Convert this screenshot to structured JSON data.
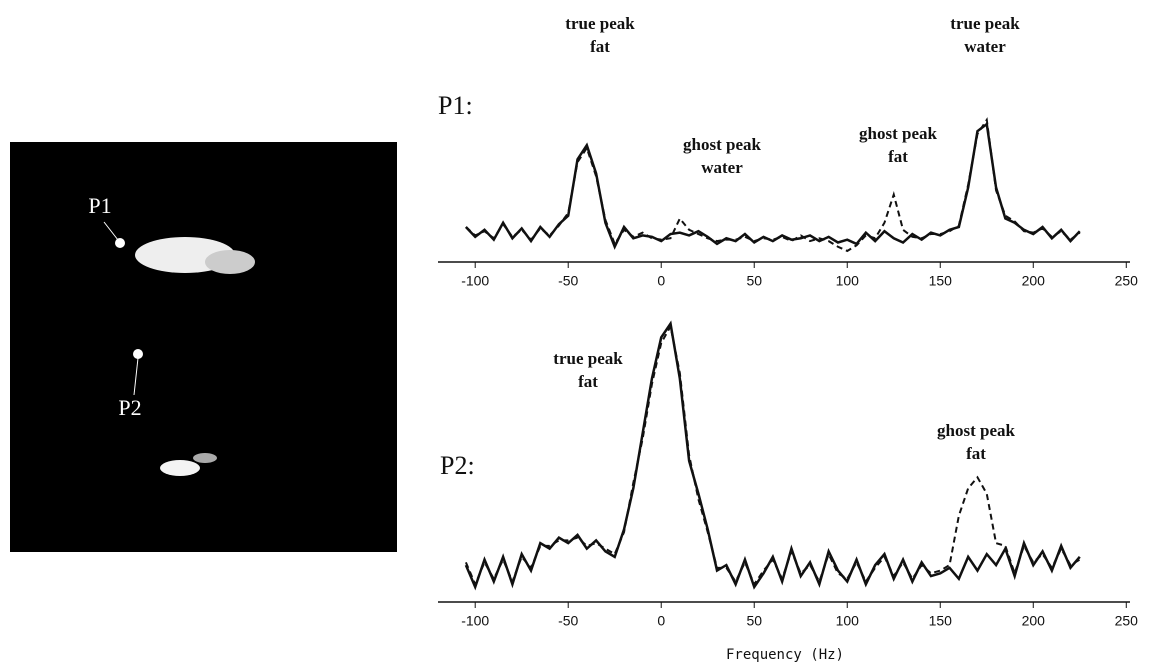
{
  "image": {
    "labels": [
      "P1",
      "P2"
    ]
  },
  "chart_data": [
    {
      "type": "line",
      "title": "P1:",
      "annotations": [
        [
          "true peak",
          "fat"
        ],
        [
          "ghost peak",
          "water"
        ],
        [
          "ghost peak",
          "fat"
        ],
        [
          "true peak",
          "water"
        ]
      ],
      "x": [
        -105,
        -100,
        -95,
        -90,
        -85,
        -80,
        -75,
        -70,
        -65,
        -60,
        -55,
        -50,
        -45,
        -40,
        -35,
        -30,
        -25,
        -20,
        -15,
        -10,
        -5,
        0,
        5,
        10,
        15,
        20,
        25,
        30,
        35,
        40,
        45,
        50,
        55,
        60,
        65,
        70,
        75,
        80,
        85,
        90,
        95,
        100,
        105,
        110,
        115,
        120,
        125,
        130,
        135,
        140,
        145,
        150,
        155,
        160,
        165,
        170,
        175,
        180,
        185,
        190,
        195,
        200,
        205,
        210,
        215,
        220,
        225
      ],
      "series": [
        {
          "color": "#111111",
          "dash": false,
          "values": [
            22,
            15,
            20,
            13,
            25,
            14,
            21,
            12,
            22,
            15,
            24,
            30,
            70,
            80,
            60,
            25,
            8,
            22,
            14,
            16,
            15,
            12,
            17,
            18,
            16,
            19,
            15,
            10,
            14,
            12,
            17,
            11,
            15,
            12,
            16,
            13,
            14,
            16,
            12,
            15,
            11,
            13,
            10,
            18,
            12,
            19,
            14,
            11,
            17,
            13,
            18,
            16,
            20,
            22,
            50,
            90,
            95,
            50,
            28,
            25,
            20,
            17,
            22,
            14,
            20,
            12,
            19
          ]
        },
        {
          "color": "#111111",
          "dash": true,
          "values": [
            22,
            16,
            19,
            14,
            24,
            15,
            20,
            13,
            21,
            16,
            23,
            32,
            68,
            78,
            58,
            27,
            10,
            20,
            15,
            18,
            14,
            13,
            14,
            28,
            20,
            17,
            14,
            12,
            13,
            13,
            15,
            12,
            14,
            13,
            15,
            12,
            16,
            12,
            14,
            12,
            8,
            5,
            9,
            16,
            14,
            25,
            45,
            20,
            15,
            14,
            17,
            17,
            19,
            23,
            52,
            88,
            98,
            48,
            30,
            26,
            19,
            18,
            21,
            15,
            19,
            13,
            18
          ]
        }
      ],
      "xlim": [
        -120,
        252
      ],
      "ylim": [
        0,
        105
      ],
      "xticks": [
        -100,
        -50,
        0,
        50,
        100,
        150,
        200,
        250
      ]
    },
    {
      "type": "line",
      "title": "P2:",
      "xlabel": "Frequency (Hz)",
      "annotations": [
        [
          "true peak",
          "fat"
        ],
        [
          "ghost peak",
          "fat"
        ]
      ],
      "x": [
        -105,
        -100,
        -95,
        -90,
        -85,
        -80,
        -75,
        -70,
        -65,
        -60,
        -55,
        -50,
        -45,
        -40,
        -35,
        -30,
        -25,
        -20,
        -15,
        -10,
        -5,
        0,
        5,
        10,
        15,
        20,
        25,
        30,
        35,
        40,
        45,
        50,
        55,
        60,
        65,
        70,
        75,
        80,
        85,
        90,
        95,
        100,
        105,
        110,
        115,
        120,
        125,
        130,
        135,
        140,
        145,
        150,
        155,
        160,
        165,
        170,
        175,
        180,
        185,
        190,
        195,
        200,
        205,
        210,
        215,
        220,
        225
      ],
      "series": [
        {
          "color": "#111111",
          "dash": false,
          "values": [
            12,
            4,
            14,
            6,
            15,
            5,
            16,
            10,
            20,
            18,
            22,
            20,
            23,
            18,
            21,
            17,
            15,
            25,
            40,
            60,
            80,
            95,
            100,
            80,
            50,
            38,
            25,
            10,
            12,
            5,
            14,
            4,
            9,
            15,
            6,
            18,
            8,
            13,
            5,
            17,
            10,
            6,
            14,
            5,
            12,
            16,
            7,
            14,
            6,
            13,
            8,
            9,
            11,
            7,
            15,
            10,
            16,
            12,
            18,
            8,
            20,
            12,
            17,
            10,
            19,
            11,
            15
          ]
        },
        {
          "color": "#111111",
          "dash": true,
          "values": [
            13,
            5,
            13,
            7,
            14,
            6,
            15,
            11,
            19,
            19,
            21,
            21,
            22,
            19,
            20,
            18,
            16,
            24,
            42,
            58,
            78,
            93,
            99,
            82,
            52,
            36,
            24,
            11,
            11,
            6,
            13,
            5,
            10,
            14,
            7,
            17,
            9,
            12,
            6,
            16,
            9,
            7,
            13,
            6,
            11,
            15,
            8,
            13,
            7,
            12,
            9,
            10,
            12,
            30,
            40,
            44,
            38,
            20,
            19,
            9,
            19,
            13,
            16,
            11,
            18,
            12,
            14
          ]
        }
      ],
      "xlim": [
        -120,
        252
      ],
      "ylim": [
        0,
        105
      ],
      "xticks": [
        -100,
        -50,
        0,
        50,
        100,
        150,
        200,
        250
      ]
    }
  ]
}
